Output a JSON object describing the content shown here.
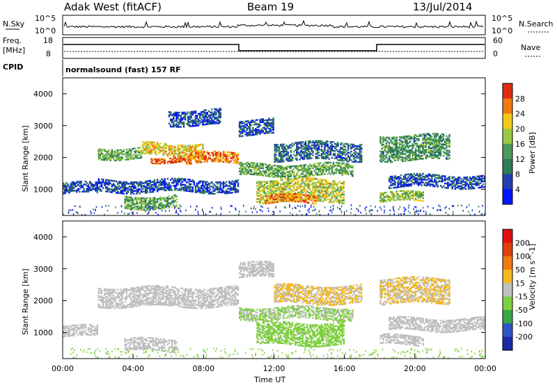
{
  "header": {
    "radar": "Adak West (fitACF)",
    "beam": "Beam 19",
    "date": "13/Jul/2014"
  },
  "noise_panel": {
    "left_label": "N.Sky",
    "right_label": "N.Search",
    "tick_top": "10^5",
    "tick_bottom": "10^0"
  },
  "freq_panel": {
    "left_label_1": "Freq.",
    "left_label_2": "[MHz]",
    "left_ticks": [
      "18",
      "8"
    ],
    "right_ticks": [
      "60",
      "0"
    ],
    "right_label": "Nave"
  },
  "cpid_panel": {
    "label": "CPID",
    "text": "normalsound (fast) 157 RF"
  },
  "colors": {
    "power": [
      "#0016ff",
      "#243fb0",
      "#2f7b5a",
      "#4a9a5a",
      "#9ac840",
      "#f3c81a",
      "#f07a10",
      "#e02b10"
    ],
    "velocity": [
      "#1a2aa8",
      "#2e56c8",
      "#36a84a",
      "#7fd040",
      "#c0c0c0",
      "#f4b820",
      "#f07a10",
      "#e04010",
      "#e01010"
    ]
  },
  "chart_data": [
    {
      "type": "heatmap",
      "title": "",
      "xlabel": "Time UT",
      "ylabel": "Slant Range [km]",
      "xticks": [
        "00:00",
        "04:00",
        "08:00",
        "12:00",
        "16:00",
        "20:00",
        "00:00"
      ],
      "yticks": [
        "1000",
        "2000",
        "3000",
        "4000"
      ],
      "ylim": [
        180,
        4500
      ],
      "xlim_hours": [
        0,
        24
      ],
      "colorbar_label": "Power [dB]",
      "colorbar_ticks": [
        "4",
        "8",
        "12",
        "16",
        "20",
        "24",
        "28"
      ],
      "colorbar_range": [
        0,
        30
      ],
      "bands": [
        {
          "t0": 0.0,
          "t1": 2.0,
          "r0": 850,
          "r1": 1200,
          "value": 6
        },
        {
          "t0": 2.0,
          "t1": 4.5,
          "r0": 1950,
          "r1": 2300,
          "value": 14
        },
        {
          "t0": 4.5,
          "t1": 8.0,
          "r0": 2050,
          "r1": 2450,
          "value": 20
        },
        {
          "t0": 7.0,
          "t1": 10.0,
          "r0": 1800,
          "r1": 2150,
          "value": 24
        },
        {
          "t0": 5.0,
          "t1": 7.0,
          "r0": 1850,
          "r1": 2050,
          "value": 26
        },
        {
          "t0": 3.5,
          "t1": 6.5,
          "r0": 400,
          "r1": 800,
          "value": 14
        },
        {
          "t0": 2.0,
          "t1": 10.0,
          "r0": 900,
          "r1": 1300,
          "value": 6
        },
        {
          "t0": 10.0,
          "t1": 16.5,
          "r0": 1400,
          "r1": 1800,
          "value": 14
        },
        {
          "t0": 12.0,
          "t1": 17.0,
          "r0": 1900,
          "r1": 2500,
          "value": 8
        },
        {
          "t0": 11.0,
          "t1": 16.0,
          "r0": 600,
          "r1": 1300,
          "value": 18
        },
        {
          "t0": 11.5,
          "t1": 14.5,
          "r0": 550,
          "r1": 800,
          "value": 24
        },
        {
          "t0": 10.0,
          "t1": 12.0,
          "r0": 2700,
          "r1": 3200,
          "value": 6
        },
        {
          "t0": 18.0,
          "t1": 22.0,
          "r0": 1900,
          "r1": 2700,
          "value": 12
        },
        {
          "t0": 18.5,
          "t1": 24.0,
          "r0": 1050,
          "r1": 1450,
          "value": 6
        },
        {
          "t0": 18.0,
          "t1": 20.5,
          "r0": 600,
          "r1": 900,
          "value": 16
        },
        {
          "t0": 6.0,
          "t1": 9.0,
          "r0": 3000,
          "r1": 3500,
          "value": 6
        }
      ]
    },
    {
      "type": "heatmap",
      "title": "",
      "xlabel": "Time UT",
      "ylabel": "Slant Range [km]",
      "xticks": [
        "00:00",
        "04:00",
        "08:00",
        "12:00",
        "16:00",
        "20:00",
        "00:00"
      ],
      "yticks": [
        "1000",
        "2000",
        "3000",
        "4000"
      ],
      "ylim": [
        180,
        4500
      ],
      "xlim_hours": [
        0,
        24
      ],
      "colorbar_label": "Velocity [m s^-1]",
      "colorbar_ticks": [
        "200",
        "100",
        "50",
        "15",
        "-15",
        "-50",
        "-100",
        "-200"
      ],
      "colorbar_range": [
        -250,
        250
      ],
      "bands": [
        {
          "t0": 0.0,
          "t1": 2.0,
          "r0": 850,
          "r1": 1200,
          "value": 0
        },
        {
          "t0": 2.0,
          "t1": 10.0,
          "r0": 1800,
          "r1": 2450,
          "value": 0
        },
        {
          "t0": 3.5,
          "t1": 6.5,
          "r0": 400,
          "r1": 800,
          "value": 0
        },
        {
          "t0": 10.0,
          "t1": 16.5,
          "r0": 1400,
          "r1": 1800,
          "value": -30
        },
        {
          "t0": 12.0,
          "t1": 17.0,
          "r0": 1900,
          "r1": 2500,
          "value": 30
        },
        {
          "t0": 11.0,
          "t1": 16.0,
          "r0": 600,
          "r1": 1300,
          "value": -45
        },
        {
          "t0": 10.0,
          "t1": 12.0,
          "r0": 2700,
          "r1": 3200,
          "value": 0
        },
        {
          "t0": 18.0,
          "t1": 22.0,
          "r0": 1900,
          "r1": 2700,
          "value": 30
        },
        {
          "t0": 18.5,
          "t1": 24.0,
          "r0": 1050,
          "r1": 1450,
          "value": 0
        },
        {
          "t0": 18.0,
          "t1": 20.5,
          "r0": 600,
          "r1": 900,
          "value": 0
        }
      ]
    }
  ]
}
